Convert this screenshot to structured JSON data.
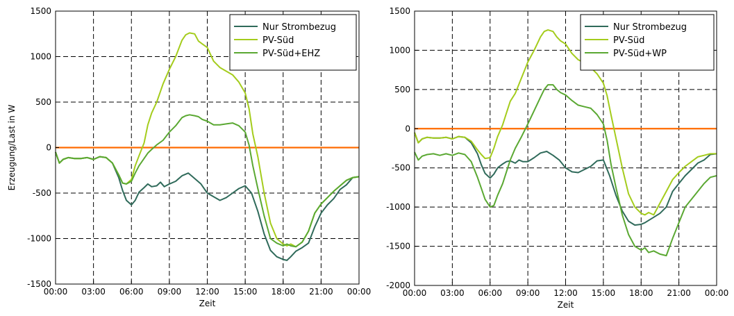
{
  "chart_data": [
    {
      "type": "line",
      "title": "",
      "xlabel": "Zeit",
      "ylabel": "Erzeugung/Last in W",
      "ylim": [
        -1500,
        1500
      ],
      "xlim": [
        0,
        24
      ],
      "grid": true,
      "grid_style": "dashed",
      "legend_position": "top-right",
      "x_tick_labels": [
        "00:00",
        "03:00",
        "06:00",
        "09:00",
        "12:00",
        "15:00",
        "18:00",
        "21:00",
        "00:00"
      ],
      "y_ticks": [
        -1500,
        -1000,
        -500,
        0,
        500,
        1000,
        1500
      ],
      "reference_line": {
        "y": 0,
        "color": "#ff6a00"
      },
      "series": [
        {
          "name": "Nur Strombezug",
          "color": "#2f6a5a",
          "x": [
            0,
            0.3,
            0.6,
            1,
            1.5,
            2,
            2.5,
            3,
            3.5,
            4,
            4.5,
            5,
            5.3,
            5.6,
            6,
            6.3,
            6.6,
            7,
            7.3,
            7.6,
            8,
            8.3,
            8.6,
            9,
            9.5,
            10,
            10.5,
            11,
            11.5,
            12,
            12.5,
            13,
            13.5,
            14,
            14.5,
            15,
            15.5,
            16,
            16.5,
            17,
            17.5,
            18,
            18.3,
            18.6,
            19,
            19.5,
            20,
            20.5,
            21,
            21.5,
            22,
            22.5,
            23,
            23.5,
            24
          ],
          "y": [
            -50,
            -170,
            -130,
            -110,
            -120,
            -120,
            -110,
            -130,
            -100,
            -110,
            -170,
            -330,
            -470,
            -580,
            -630,
            -580,
            -490,
            -440,
            -400,
            -430,
            -420,
            -380,
            -430,
            -400,
            -370,
            -310,
            -280,
            -340,
            -400,
            -500,
            -540,
            -580,
            -550,
            -500,
            -450,
            -420,
            -500,
            -700,
            -950,
            -1130,
            -1200,
            -1230,
            -1240,
            -1200,
            -1140,
            -1100,
            -1050,
            -870,
            -720,
            -630,
            -560,
            -460,
            -410,
            -330,
            -320
          ]
        },
        {
          "name": "PV-Süd",
          "color": "#a4cc1c",
          "x": [
            0,
            0.3,
            0.6,
            1,
            1.5,
            2,
            2.5,
            3,
            3.5,
            4,
            4.5,
            5,
            5.3,
            5.6,
            6,
            6.3,
            6.6,
            7,
            7.3,
            7.6,
            8,
            8.5,
            9,
            9.5,
            10,
            10.3,
            10.6,
            11,
            11.3,
            11.6,
            12,
            12.5,
            13,
            13.5,
            14,
            14.5,
            15,
            15.3,
            15.6,
            16,
            16.5,
            17,
            17.5,
            18,
            18.3,
            18.6,
            19,
            19.5,
            20,
            20.5,
            21,
            21.5,
            22,
            22.5,
            23,
            23.5,
            24
          ],
          "y": [
            -50,
            -170,
            -130,
            -110,
            -120,
            -120,
            -110,
            -130,
            -100,
            -110,
            -170,
            -300,
            -390,
            -400,
            -350,
            -200,
            -90,
            50,
            250,
            380,
            500,
            700,
            860,
            1000,
            1180,
            1240,
            1260,
            1250,
            1170,
            1140,
            1100,
            950,
            880,
            840,
            800,
            720,
            600,
            430,
            150,
            -100,
            -500,
            -830,
            -1000,
            -1060,
            -1080,
            -1060,
            -1090,
            -1040,
            -920,
            -720,
            -620,
            -550,
            -480,
            -420,
            -360,
            -330,
            -320
          ]
        },
        {
          "name": "PV-Süd+EHZ",
          "color": "#5aa832",
          "x": [
            0,
            0.3,
            0.6,
            1,
            1.5,
            2,
            2.5,
            3,
            3.5,
            4,
            4.5,
            5,
            5.3,
            5.6,
            6,
            6.3,
            6.6,
            7,
            7.3,
            7.6,
            8,
            8.5,
            9,
            9.5,
            10,
            10.3,
            10.6,
            11,
            11.3,
            11.6,
            12,
            12.5,
            13,
            13.5,
            14,
            14.5,
            15,
            15.3,
            15.6,
            16,
            16.5,
            17,
            17.5,
            18,
            18.3,
            18.6,
            19,
            19.5,
            20,
            20.5,
            21,
            21.5,
            22,
            22.5,
            23,
            23.5,
            24
          ],
          "y": [
            -50,
            -170,
            -130,
            -110,
            -120,
            -120,
            -110,
            -130,
            -100,
            -110,
            -170,
            -300,
            -390,
            -400,
            -370,
            -280,
            -200,
            -120,
            -60,
            -20,
            30,
            80,
            170,
            240,
            330,
            350,
            360,
            350,
            340,
            310,
            290,
            250,
            250,
            260,
            270,
            240,
            170,
            30,
            -200,
            -450,
            -750,
            -1000,
            -1050,
            -1080,
            -1060,
            -1080,
            -1090,
            -1040,
            -920,
            -720,
            -620,
            -550,
            -480,
            -420,
            -360,
            -330,
            -320
          ]
        }
      ]
    },
    {
      "type": "line",
      "title": "",
      "xlabel": "Zeit",
      "ylabel": "",
      "ylim": [
        -2000,
        1500
      ],
      "xlim": [
        0,
        24
      ],
      "grid": true,
      "grid_style": "dashed",
      "legend_position": "top-right",
      "x_tick_labels": [
        "00:00",
        "03:00",
        "06:00",
        "09:00",
        "12:00",
        "15:00",
        "18:00",
        "21:00",
        "00:00"
      ],
      "y_ticks": [
        -2000,
        -1500,
        -1000,
        -500,
        0,
        500,
        1000,
        1500
      ],
      "reference_line": {
        "y": 0,
        "color": "#ff6a00"
      },
      "series": [
        {
          "name": "Nur Strombezug",
          "color": "#2f6a5a",
          "x": [
            0,
            0.3,
            0.6,
            1,
            1.5,
            2,
            2.5,
            3,
            3.5,
            4,
            4.5,
            5,
            5.3,
            5.6,
            6,
            6.3,
            6.6,
            7,
            7.3,
            7.6,
            8,
            8.3,
            8.6,
            9,
            9.5,
            10,
            10.5,
            11,
            11.5,
            12,
            12.5,
            13,
            13.5,
            14,
            14.5,
            15,
            15.5,
            16,
            16.5,
            17,
            17.5,
            18,
            18.3,
            18.6,
            19,
            19.5,
            20,
            20.5,
            21,
            21.5,
            22,
            22.5,
            23,
            23.5,
            24
          ],
          "y": [
            -50,
            -180,
            -130,
            -110,
            -120,
            -120,
            -110,
            -130,
            -100,
            -110,
            -180,
            -320,
            -460,
            -570,
            -630,
            -580,
            -500,
            -450,
            -420,
            -410,
            -440,
            -400,
            -420,
            -420,
            -370,
            -310,
            -290,
            -340,
            -400,
            -500,
            -550,
            -560,
            -520,
            -480,
            -410,
            -400,
            -600,
            -850,
            -1050,
            -1180,
            -1230,
            -1220,
            -1200,
            -1170,
            -1130,
            -1080,
            -1000,
            -800,
            -700,
            -600,
            -520,
            -440,
            -400,
            -330,
            -320
          ]
        },
        {
          "name": "PV-Süd",
          "color": "#a4cc1c",
          "x": [
            0,
            0.3,
            0.6,
            1,
            1.5,
            2,
            2.5,
            3,
            3.5,
            4,
            4.5,
            5,
            5.3,
            5.6,
            6,
            6.3,
            6.6,
            7,
            7.3,
            7.6,
            8,
            8.5,
            9,
            9.5,
            10,
            10.3,
            10.6,
            11,
            11.3,
            11.6,
            12,
            12.5,
            13,
            13.5,
            14,
            14.5,
            15,
            15.3,
            15.6,
            16,
            16.5,
            17,
            17.5,
            18,
            18.3,
            18.6,
            19,
            19.5,
            20,
            20.5,
            21,
            21.5,
            22,
            22.5,
            23,
            23.5,
            24
          ],
          "y": [
            -50,
            -180,
            -130,
            -110,
            -120,
            -120,
            -110,
            -130,
            -100,
            -110,
            -160,
            -270,
            -330,
            -380,
            -370,
            -250,
            -100,
            50,
            200,
            350,
            450,
            650,
            850,
            1000,
            1170,
            1240,
            1260,
            1240,
            1170,
            1120,
            1080,
            960,
            880,
            840,
            780,
            700,
            580,
            420,
            180,
            -120,
            -500,
            -830,
            -1000,
            -1080,
            -1100,
            -1070,
            -1100,
            -950,
            -800,
            -650,
            -560,
            -480,
            -420,
            -360,
            -340,
            -320,
            -320
          ]
        },
        {
          "name": "PV-Süd+WP",
          "color": "#5aa832",
          "x": [
            0,
            0.3,
            0.6,
            1,
            1.5,
            2,
            2.5,
            3,
            3.5,
            4,
            4.5,
            5,
            5.3,
            5.6,
            6,
            6.3,
            6.6,
            7,
            7.3,
            7.6,
            8,
            8.5,
            9,
            9.5,
            10,
            10.3,
            10.6,
            11,
            11.3,
            11.6,
            12,
            12.5,
            13,
            13.5,
            14,
            14.5,
            15,
            15.3,
            15.6,
            16,
            16.5,
            17,
            17.5,
            18,
            18.3,
            18.6,
            19,
            19.5,
            20,
            20.5,
            21,
            21.5,
            22,
            22.5,
            23,
            23.5,
            24
          ],
          "y": [
            -300,
            -400,
            -350,
            -330,
            -320,
            -340,
            -320,
            -340,
            -310,
            -330,
            -420,
            -620,
            -760,
            -900,
            -1000,
            -980,
            -850,
            -700,
            -550,
            -400,
            -250,
            -100,
            60,
            230,
            400,
            500,
            560,
            560,
            500,
            460,
            430,
            360,
            300,
            280,
            260,
            180,
            60,
            -150,
            -450,
            -750,
            -1100,
            -1350,
            -1500,
            -1550,
            -1520,
            -1580,
            -1560,
            -1600,
            -1620,
            -1400,
            -1200,
            -1000,
            -900,
            -800,
            -700,
            -620,
            -600
          ]
        }
      ]
    }
  ]
}
